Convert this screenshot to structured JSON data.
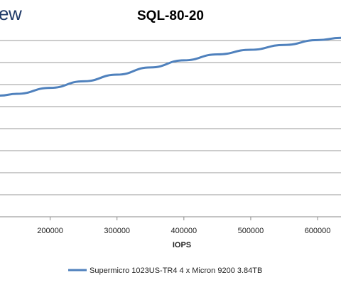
{
  "logo_text": "ew",
  "chart_data": {
    "type": "line",
    "title": "SQL-80-20",
    "xlabel": "IOPS",
    "ylabel": "",
    "x_ticks": [
      200000,
      300000,
      400000,
      500000,
      600000
    ],
    "x_tick_labels": [
      "200000",
      "300000",
      "400000",
      "500000",
      "600000"
    ],
    "xlim": [
      125000,
      635000
    ],
    "ylim": [
      0,
      8
    ],
    "grid": true,
    "legend_position": "bottom",
    "series": [
      {
        "name": "Supermicro 1023US-TR4 4 x Micron 9200 3.84TB",
        "color": "#4f81bd",
        "x": [
          125000,
          150000,
          200000,
          250000,
          300000,
          350000,
          400000,
          450000,
          500000,
          550000,
          600000,
          635000
        ],
        "y": [
          5.5,
          5.58,
          5.85,
          6.15,
          6.45,
          6.78,
          7.1,
          7.37,
          7.58,
          7.8,
          8.02,
          8.12
        ]
      }
    ]
  }
}
